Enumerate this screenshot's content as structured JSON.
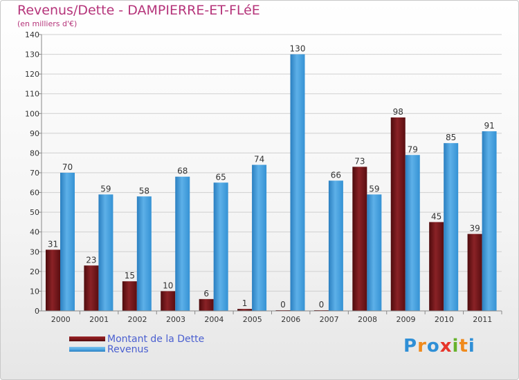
{
  "header": {
    "title": "Revenus/Dette - DAMPIERRE-ET-FLéE",
    "subtitle": "(en milliers d'€)"
  },
  "colors": {
    "title": "#b5347a",
    "dette": "#7a1518",
    "revenus": "#4aa3e0",
    "legend_text": "#4a5fd0"
  },
  "chart_data": {
    "type": "bar",
    "title": "Revenus/Dette - DAMPIERRE-ET-FLéE",
    "ylabel": "(en milliers d'€)",
    "xlabel": "",
    "ylim": [
      0,
      140
    ],
    "yticks": [
      0,
      10,
      20,
      30,
      40,
      50,
      60,
      70,
      80,
      90,
      100,
      110,
      120,
      130,
      140
    ],
    "grid": true,
    "legend_position": "bottom-left",
    "categories": [
      "2000",
      "2001",
      "2002",
      "2003",
      "2004",
      "2005",
      "2006",
      "2007",
      "2008",
      "2009",
      "2010",
      "2011"
    ],
    "series": [
      {
        "name": "Montant de la Dette",
        "color": "#7a1518",
        "values": [
          31,
          23,
          15,
          10,
          6,
          1,
          0,
          0,
          73,
          98,
          45,
          39
        ]
      },
      {
        "name": "Revenus",
        "color": "#4aa3e0",
        "values": [
          70,
          59,
          58,
          68,
          65,
          74,
          130,
          66,
          59,
          79,
          85,
          91
        ]
      }
    ]
  },
  "legend": {
    "items": [
      {
        "label": "Montant de la Dette"
      },
      {
        "label": "Revenus"
      }
    ]
  },
  "logo": {
    "letters": [
      "P",
      "r",
      "o",
      "x",
      "i",
      "t",
      "i"
    ],
    "colors": [
      "#2f8fd6",
      "#f08a1c",
      "#2f8fd6",
      "#e7352a",
      "#67b22c",
      "#f08a1c",
      "#2f8fd6"
    ]
  }
}
